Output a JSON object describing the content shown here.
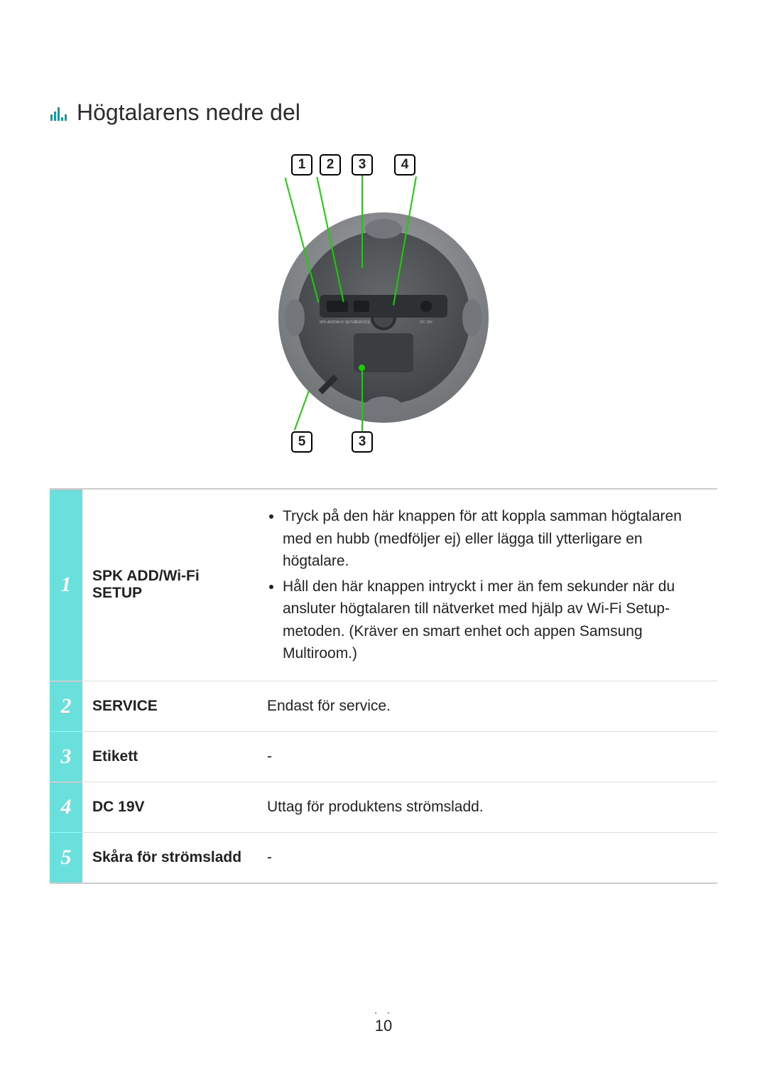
{
  "heading": "Högtalarens nedre del",
  "accent_color": "#00a0a0",
  "diagram": {
    "callouts_top": [
      "1",
      "2",
      "3",
      "4"
    ],
    "callouts_bottom_left": "5",
    "callouts_bottom_right": "3",
    "port_labels": {
      "left": "SPK ADD/Wi-Fi SETUP",
      "service": "SERVICE",
      "dc": "DC 19V"
    },
    "line_color": "#18d000",
    "body_color": "#54575a",
    "rim_color": "#8a8d8f",
    "panel_color": "#3b3e40",
    "foot_color": "#707375",
    "center_color": "#2f3234"
  },
  "table": {
    "num_bg": "#69e0dc",
    "num_color": "#ffffff",
    "border_color": "#dddddd",
    "rows": [
      {
        "n": "1",
        "name": "SPK ADD/Wi-Fi SETUP",
        "desc_type": "list",
        "items": [
          "Tryck på den här knappen för att koppla samman högtalaren med en hubb (medföljer ej) eller lägga till ytterligare en högtalare.",
          "Håll den här knappen intryckt i mer än fem sekunder när du ansluter högtalaren till nätverket med hjälp av Wi-Fi Setup-metoden. (Kräver en smart enhet och appen Samsung Multiroom.)"
        ]
      },
      {
        "n": "2",
        "name": "SERVICE",
        "desc_type": "text",
        "text": "Endast för service."
      },
      {
        "n": "3",
        "name": "Etikett",
        "desc_type": "text",
        "text": "-"
      },
      {
        "n": "4",
        "name": "DC 19V",
        "desc_type": "text",
        "text": "Uttag för produktens strömsladd."
      },
      {
        "n": "5",
        "name": "Skåra för strömsladd",
        "desc_type": "text",
        "text": "-"
      }
    ]
  },
  "page_number": "10"
}
